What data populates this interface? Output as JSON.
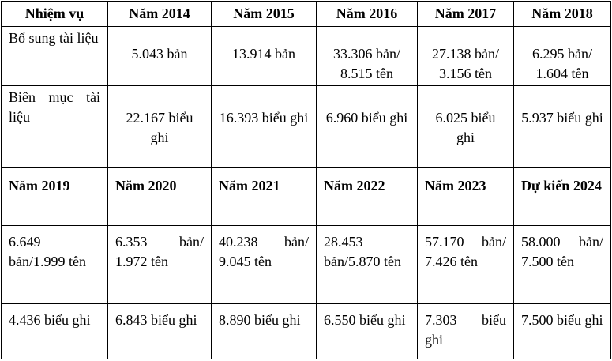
{
  "table": {
    "rows": [
      [
        "Nhiệm vụ",
        "Năm 2014",
        "Năm 2015",
        "Năm 2016",
        "Năm 2017",
        "Năm 2018"
      ],
      [
        "Bổ sung tài liệu",
        "5.043 bản",
        "13.914 bản",
        "33.306 bản/ 8.515 tên",
        "27.138 bản/ 3.156 tên",
        "6.295 bản/ 1.604 tên"
      ],
      [
        "Biên mục tài liệu",
        "22.167 biểu ghi",
        "16.393 biểu ghi",
        "6.960 biểu ghi",
        "6.025 biểu ghi",
        "5.937 biểu ghi"
      ],
      [
        "Năm 2019",
        "Năm 2020",
        "Năm 2021",
        "Năm 2022",
        "Năm 2023",
        "Dự kiến 2024"
      ],
      [
        "6.649 bản/1.999 tên",
        "6.353 bản/ 1.972 tên",
        "40.238 bản/ 9.045 tên",
        "28.453 bản/5.870 tên",
        "57.170 bản/ 7.426 tên",
        "58.000 bản/ 7.500 tên"
      ],
      [
        "4.436 biểu ghi",
        "6.843 biểu ghi",
        "8.890 biểu ghi",
        "6.550 biểu ghi",
        "7.303 biểu ghi",
        "7.500 biểu ghi"
      ]
    ]
  }
}
